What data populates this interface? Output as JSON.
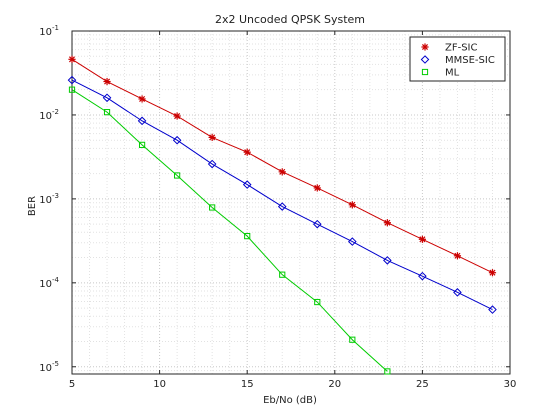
{
  "chart_data": {
    "type": "line",
    "title": "2x2 Uncoded QPSK System",
    "xlabel": "Eb/No (dB)",
    "ylabel": "BER",
    "xlim": [
      5,
      30
    ],
    "ylim": [
      8.2e-06,
      0.1
    ],
    "yscale": "log",
    "grid": true,
    "legend_position": "top-right",
    "x_ticks": [
      "5",
      "10",
      "15",
      "20",
      "25",
      "30"
    ],
    "y_ticks": [
      {
        "base": "10",
        "exp": "-1",
        "value": 0.1
      },
      {
        "base": "10",
        "exp": "-2",
        "value": 0.01
      },
      {
        "base": "10",
        "exp": "-3",
        "value": 0.001
      },
      {
        "base": "10",
        "exp": "-4",
        "value": 0.0001
      },
      {
        "base": "10",
        "exp": "-5",
        "value": 1e-05
      }
    ],
    "x": [
      5,
      7,
      9,
      11,
      13,
      15,
      17,
      19,
      21,
      23,
      25,
      27,
      29
    ],
    "series": [
      {
        "name": "ZF-SIC",
        "color": "#cc0000",
        "marker": "asterisk",
        "x": [
          5,
          7,
          9,
          11,
          13,
          15,
          17,
          19,
          21,
          23,
          25,
          27,
          29
        ],
        "values": [
          0.046,
          0.025,
          0.0155,
          0.0097,
          0.0054,
          0.0036,
          0.0021,
          0.00135,
          0.00085,
          0.00052,
          0.00033,
          0.00021,
          0.000132
        ]
      },
      {
        "name": "MMSE-SIC",
        "color": "#0000cc",
        "marker": "diamond",
        "x": [
          5,
          7,
          9,
          11,
          13,
          15,
          17,
          19,
          21,
          23,
          25,
          27,
          29
        ],
        "values": [
          0.026,
          0.016,
          0.0085,
          0.005,
          0.0026,
          0.00148,
          0.00081,
          0.0005,
          0.00031,
          0.000185,
          0.00012,
          7.7e-05,
          4.8e-05
        ]
      },
      {
        "name": "ML",
        "color": "#00cc00",
        "marker": "square",
        "x": [
          5,
          7,
          9,
          11,
          13,
          15,
          17,
          19,
          21,
          23
        ],
        "values": [
          0.02,
          0.0108,
          0.0044,
          0.0019,
          0.00079,
          0.00036,
          0.000125,
          5.9e-05,
          2.1e-05,
          8.8e-06
        ]
      }
    ]
  }
}
